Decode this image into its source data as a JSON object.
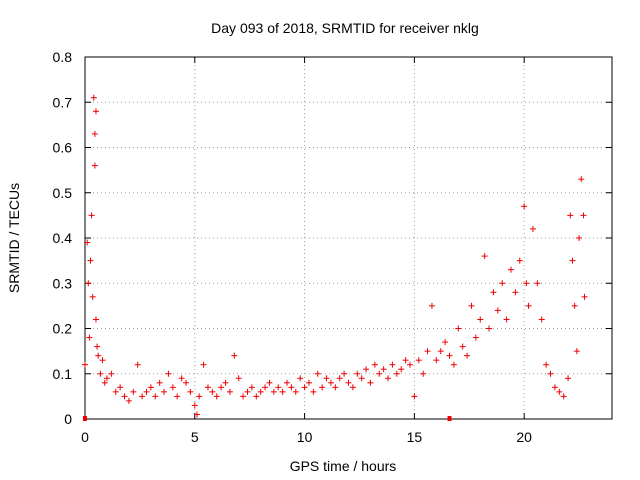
{
  "chart_data": {
    "type": "scatter",
    "title": "Day 093 of 2018, SRMTID for receiver nklg",
    "xlabel": "GPS time / hours",
    "ylabel": "SRMTID / TECUs",
    "xlim": [
      0,
      24
    ],
    "ylim": [
      0,
      0.8
    ],
    "x_ticks": [
      0,
      5,
      10,
      15,
      20
    ],
    "x_tick_labels": [
      "0",
      "5",
      "10",
      "15",
      "20"
    ],
    "y_ticks": [
      0,
      0.1,
      0.2,
      0.3,
      0.4,
      0.5,
      0.6,
      0.7,
      0.8
    ],
    "y_tick_labels": [
      "0",
      "0.1",
      "0.2",
      "0.3",
      "0.4",
      "0.5",
      "0.6",
      "0.7",
      "0.8"
    ],
    "grid": true,
    "marker": "+",
    "color": "#ee0000",
    "series": [
      {
        "name": "SRMTID",
        "x": [
          0.0,
          0.1,
          0.15,
          0.2,
          0.25,
          0.3,
          0.35,
          0.4,
          0.45,
          0.45,
          0.5,
          0.5,
          0.55,
          0.6,
          0.7,
          0.8,
          0.9,
          1.0,
          1.2,
          1.4,
          1.6,
          1.8,
          2.0,
          2.2,
          2.4,
          2.6,
          2.8,
          3.0,
          3.2,
          3.4,
          3.6,
          3.8,
          4.0,
          4.2,
          4.4,
          4.6,
          4.8,
          5.0,
          5.1,
          5.2,
          5.4,
          5.6,
          5.8,
          6.0,
          6.2,
          6.4,
          6.6,
          6.8,
          7.0,
          7.2,
          7.4,
          7.6,
          7.8,
          8.0,
          8.2,
          8.4,
          8.6,
          8.8,
          9.0,
          9.2,
          9.4,
          9.6,
          9.8,
          10.0,
          10.2,
          10.4,
          10.6,
          10.8,
          11.0,
          11.2,
          11.4,
          11.6,
          11.8,
          12.0,
          12.2,
          12.4,
          12.6,
          12.8,
          13.0,
          13.2,
          13.4,
          13.6,
          13.8,
          14.0,
          14.2,
          14.4,
          14.6,
          14.8,
          15.0,
          15.2,
          15.4,
          15.6,
          15.8,
          16.0,
          16.2,
          16.4,
          16.6,
          16.8,
          17.0,
          17.2,
          17.4,
          17.6,
          17.8,
          18.0,
          18.2,
          18.4,
          18.6,
          18.8,
          19.0,
          19.2,
          19.4,
          19.6,
          19.8,
          20.0,
          20.1,
          20.2,
          20.4,
          20.6,
          20.8,
          21.0,
          21.2,
          21.4,
          21.6,
          21.8,
          22.0,
          22.1,
          22.2,
          22.3,
          22.4,
          22.5,
          22.6,
          22.7,
          22.75
        ],
        "y": [
          0.12,
          0.39,
          0.3,
          0.18,
          0.35,
          0.45,
          0.27,
          0.71,
          0.56,
          0.63,
          0.68,
          0.22,
          0.16,
          0.14,
          0.1,
          0.13,
          0.08,
          0.09,
          0.1,
          0.06,
          0.07,
          0.05,
          0.04,
          0.06,
          0.12,
          0.05,
          0.06,
          0.07,
          0.05,
          0.08,
          0.06,
          0.1,
          0.07,
          0.05,
          0.09,
          0.08,
          0.06,
          0.03,
          0.01,
          0.05,
          0.12,
          0.07,
          0.06,
          0.05,
          0.07,
          0.08,
          0.06,
          0.14,
          0.09,
          0.05,
          0.06,
          0.07,
          0.05,
          0.06,
          0.07,
          0.08,
          0.06,
          0.07,
          0.06,
          0.08,
          0.07,
          0.06,
          0.09,
          0.07,
          0.08,
          0.06,
          0.1,
          0.07,
          0.09,
          0.08,
          0.07,
          0.09,
          0.1,
          0.08,
          0.07,
          0.1,
          0.09,
          0.11,
          0.08,
          0.12,
          0.1,
          0.11,
          0.09,
          0.12,
          0.1,
          0.11,
          0.13,
          0.12,
          0.05,
          0.13,
          0.1,
          0.15,
          0.25,
          0.13,
          0.15,
          0.17,
          0.14,
          0.12,
          0.2,
          0.16,
          0.14,
          0.25,
          0.18,
          0.22,
          0.36,
          0.2,
          0.28,
          0.24,
          0.3,
          0.22,
          0.33,
          0.28,
          0.35,
          0.47,
          0.3,
          0.25,
          0.42,
          0.3,
          0.22,
          0.12,
          0.1,
          0.07,
          0.06,
          0.05,
          0.09,
          0.45,
          0.35,
          0.25,
          0.15,
          0.4,
          0.53,
          0.45,
          0.27
        ]
      }
    ],
    "flagged_points": [
      {
        "x": 0.0,
        "y": 0
      },
      {
        "x": 16.6,
        "y": 0
      }
    ]
  }
}
